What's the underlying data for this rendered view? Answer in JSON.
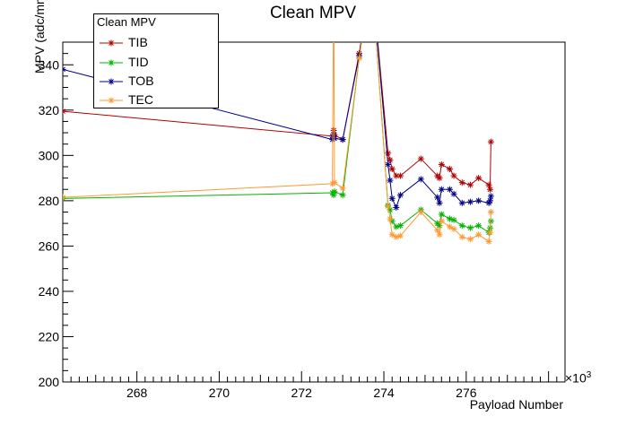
{
  "chart_data": {
    "type": "line",
    "title": "Clean MPV",
    "xlabel": "Payload Number",
    "ylabel": "MPV (adc/mm)",
    "x_exponent": "×10",
    "x_exponent_power": "3",
    "xlim": [
      266.2,
      278.4
    ],
    "ylim": [
      200,
      350
    ],
    "x_ticks": [
      268,
      270,
      272,
      274,
      276
    ],
    "y_ticks": [
      200,
      220,
      240,
      260,
      280,
      300,
      320,
      340
    ],
    "legend_title": "Clean MPV",
    "legend_position": "top-left",
    "series": [
      {
        "name": "TIB",
        "color": "#b00000",
        "points": [
          [
            266.2,
            319.5
          ],
          [
            272.75,
            308.5
          ],
          [
            272.78,
            311
          ],
          [
            272.8,
            309
          ],
          [
            273.0,
            307
          ],
          [
            273.4,
            345
          ],
          [
            273.7,
            380
          ],
          [
            274.1,
            301
          ],
          [
            274.15,
            298
          ],
          [
            274.2,
            294
          ],
          [
            274.3,
            291
          ],
          [
            274.4,
            291
          ],
          [
            274.9,
            298.5
          ],
          [
            275.3,
            291
          ],
          [
            275.35,
            290
          ],
          [
            275.4,
            296
          ],
          [
            275.6,
            294
          ],
          [
            275.7,
            291
          ],
          [
            275.9,
            288
          ],
          [
            276.1,
            287
          ],
          [
            276.3,
            290
          ],
          [
            276.55,
            287
          ],
          [
            276.58,
            285
          ],
          [
            276.6,
            306
          ]
        ]
      },
      {
        "name": "TID",
        "color": "#00b400",
        "points": [
          [
            266.2,
            281
          ],
          [
            272.75,
            283.5
          ],
          [
            272.78,
            282.5
          ],
          [
            272.8,
            284
          ],
          [
            273.0,
            282.5
          ],
          [
            273.4,
            343
          ],
          [
            273.7,
            380
          ],
          [
            274.1,
            278
          ],
          [
            274.15,
            276
          ],
          [
            274.2,
            271
          ],
          [
            274.3,
            268.5
          ],
          [
            274.4,
            269
          ],
          [
            274.9,
            276
          ],
          [
            275.3,
            270
          ],
          [
            275.35,
            269
          ],
          [
            275.4,
            274
          ],
          [
            275.6,
            272
          ],
          [
            275.7,
            271.5
          ],
          [
            275.9,
            269
          ],
          [
            276.1,
            268
          ],
          [
            276.3,
            269
          ],
          [
            276.55,
            266
          ],
          [
            276.58,
            268
          ],
          [
            276.6,
            271
          ]
        ]
      },
      {
        "name": "TOB",
        "color": "#00008b",
        "points": [
          [
            266.2,
            338
          ],
          [
            272.75,
            307
          ],
          [
            272.78,
            309
          ],
          [
            272.8,
            307.5
          ],
          [
            273.0,
            307
          ],
          [
            273.4,
            344
          ],
          [
            273.7,
            380
          ],
          [
            274.1,
            296
          ],
          [
            274.15,
            289
          ],
          [
            274.2,
            281
          ],
          [
            274.3,
            277
          ],
          [
            274.4,
            282.5
          ],
          [
            274.9,
            289.5
          ],
          [
            275.3,
            281.5
          ],
          [
            275.35,
            279
          ],
          [
            275.4,
            285
          ],
          [
            275.6,
            285
          ],
          [
            275.7,
            283
          ],
          [
            275.9,
            279
          ],
          [
            276.1,
            279.5
          ],
          [
            276.3,
            280
          ],
          [
            276.55,
            279
          ],
          [
            276.58,
            280
          ],
          [
            276.6,
            282
          ]
        ]
      },
      {
        "name": "TEC",
        "color": "#ff9933",
        "points": [
          [
            266.2,
            281.5
          ],
          [
            272.75,
            287.5
          ],
          [
            272.78,
            380
          ],
          [
            272.8,
            288
          ],
          [
            273.0,
            285.5
          ],
          [
            273.4,
            343
          ],
          [
            273.7,
            380
          ],
          [
            274.1,
            277.5
          ],
          [
            274.15,
            272
          ],
          [
            274.2,
            265
          ],
          [
            274.3,
            264
          ],
          [
            274.4,
            264.5
          ],
          [
            274.9,
            275
          ],
          [
            275.3,
            267
          ],
          [
            275.35,
            265
          ],
          [
            275.4,
            271
          ],
          [
            275.6,
            268.5
          ],
          [
            275.7,
            267.5
          ],
          [
            275.9,
            264
          ],
          [
            276.1,
            263
          ],
          [
            276.3,
            265
          ],
          [
            276.55,
            262
          ],
          [
            276.58,
            266
          ],
          [
            276.6,
            275
          ]
        ]
      }
    ]
  }
}
